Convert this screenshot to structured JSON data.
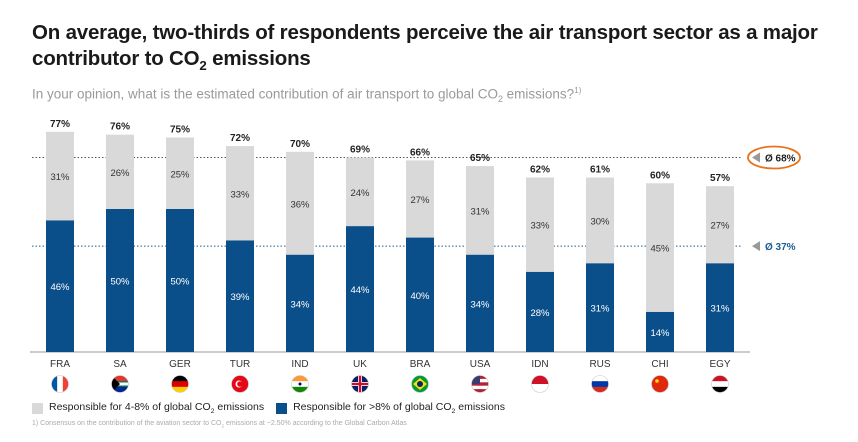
{
  "title": {
    "line1": "On average, two-thirds of respondents perceive the air transport sector as a major",
    "line2_pre": "contributor to CO",
    "line2_sub": "2",
    "line2_post": " emissions"
  },
  "subtitle": {
    "pre": "In your opinion, what is the estimated contribution of air transport to global CO",
    "sub": "2",
    "post": " emissions?",
    "sup": "1)"
  },
  "colors": {
    "light": "#d9d9d9",
    "dark": "#0b4f8a",
    "avg_total": "#9a9a9a",
    "avg_dark": "#1f5d94",
    "circle": "#e8731e"
  },
  "legend": [
    {
      "pre": "Responsible for 4-8% of global CO",
      "sub": "2",
      "post": " emissions"
    },
    {
      "pre": "Responsible for >8% of global CO",
      "sub": "2",
      "post": " emissions"
    }
  ],
  "footnote": {
    "pre": "1) Consensus on the contribution of the aviation sector to CO",
    "sub": "2",
    "post": " emissions at ~2.50% according to the Global Carbon Atlas"
  },
  "chart_data": {
    "type": "bar",
    "stacked": true,
    "categories": [
      "FRA",
      "SA",
      "GER",
      "TUR",
      "IND",
      "UK",
      "BRA",
      "USA",
      "IDN",
      "RUS",
      "CHI",
      "EGY"
    ],
    "series": [
      {
        "name": "Responsible for >8% of global CO2 emissions",
        "values": [
          46,
          50,
          50,
          39,
          34,
          44,
          40,
          34,
          28,
          31,
          14,
          31
        ]
      },
      {
        "name": "Responsible for 4-8% of global CO2 emissions",
        "values": [
          31,
          26,
          25,
          33,
          36,
          24,
          27,
          31,
          33,
          30,
          45,
          27
        ]
      }
    ],
    "totals": [
      "77%",
      "76%",
      "75%",
      "72%",
      "70%",
      "69%",
      "66%",
      "65%",
      "62%",
      "61%",
      "60%",
      "57%"
    ],
    "averages": [
      {
        "label": "Ø 68%",
        "value": 68
      },
      {
        "label": "Ø 37%",
        "value": 37
      }
    ],
    "ylim": [
      0,
      80
    ],
    "flags": [
      "france",
      "south-africa",
      "germany",
      "turkey",
      "india",
      "uk",
      "brazil",
      "usa",
      "indonesia",
      "russia",
      "china",
      "egypt"
    ]
  }
}
